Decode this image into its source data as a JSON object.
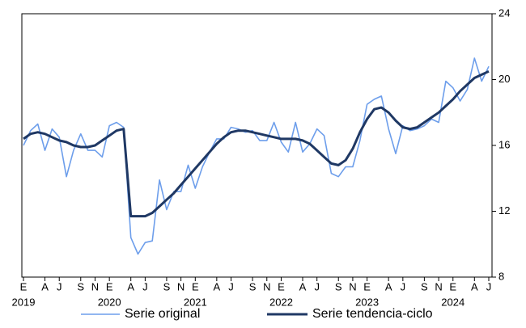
{
  "chart_data": {
    "type": "line",
    "categories": [
      "E",
      null,
      null,
      "A",
      null,
      "J",
      null,
      null,
      "S",
      null,
      "N",
      null,
      "E",
      null,
      null,
      "A",
      null,
      "J",
      null,
      null,
      "S",
      null,
      "N",
      null,
      "E",
      null,
      null,
      "A",
      null,
      "J",
      null,
      null,
      "S",
      null,
      "N",
      null,
      "E",
      null,
      null,
      "A",
      null,
      "J",
      null,
      null,
      "S",
      null,
      "N",
      null,
      "E",
      null,
      null,
      "A",
      null,
      "J",
      null,
      null,
      "S",
      null,
      "N",
      null,
      "E",
      null,
      null,
      "A",
      null,
      "J"
    ],
    "year_labels": [
      "2019",
      null,
      null,
      null,
      null,
      null,
      null,
      null,
      null,
      null,
      null,
      null,
      "2020",
      null,
      null,
      null,
      null,
      null,
      null,
      null,
      null,
      null,
      null,
      null,
      "2021",
      null,
      null,
      null,
      null,
      null,
      null,
      null,
      null,
      null,
      null,
      null,
      "2022",
      null,
      null,
      null,
      null,
      null,
      null,
      null,
      null,
      null,
      null,
      null,
      "2023",
      null,
      null,
      null,
      null,
      null,
      null,
      null,
      null,
      null,
      null,
      null,
      "2024",
      null,
      null,
      null,
      null,
      null
    ],
    "series": [
      {
        "name": "Serie original",
        "color": "#6d9eeb",
        "values": [
          16.0,
          16.9,
          17.3,
          15.7,
          17.0,
          16.5,
          14.1,
          15.7,
          16.7,
          15.7,
          15.7,
          15.3,
          17.2,
          17.4,
          17.1,
          10.4,
          9.4,
          10.1,
          10.2,
          13.9,
          12.1,
          13.2,
          13.2,
          14.8,
          13.4,
          14.7,
          15.6,
          16.4,
          16.4,
          17.1,
          17.0,
          16.8,
          16.9,
          16.3,
          16.3,
          17.4,
          16.2,
          15.6,
          17.4,
          15.6,
          16.1,
          17.0,
          16.6,
          14.3,
          14.1,
          14.7,
          14.7,
          16.3,
          18.5,
          18.8,
          19.0,
          17.0,
          15.5,
          17.2,
          16.9,
          17.0,
          17.2,
          17.6,
          17.4,
          19.9,
          19.5,
          18.7,
          19.4,
          21.3,
          19.9,
          20.8
        ]
      },
      {
        "name": "Serie tendencia-ciclo",
        "color": "#1f3864",
        "values": [
          16.4,
          16.7,
          16.8,
          16.7,
          16.5,
          16.3,
          16.2,
          16.0,
          15.9,
          15.9,
          16.0,
          16.3,
          16.6,
          16.9,
          17.0,
          11.7,
          11.7,
          11.7,
          11.9,
          12.3,
          12.7,
          13.1,
          13.6,
          14.1,
          14.6,
          15.1,
          15.6,
          16.1,
          16.5,
          16.8,
          16.9,
          16.9,
          16.8,
          16.7,
          16.6,
          16.5,
          16.4,
          16.4,
          16.4,
          16.3,
          16.1,
          15.7,
          15.3,
          14.9,
          14.8,
          15.1,
          15.8,
          16.8,
          17.6,
          18.2,
          18.3,
          18.0,
          17.5,
          17.1,
          17.0,
          17.1,
          17.4,
          17.7,
          18.0,
          18.4,
          18.8,
          19.3,
          19.7,
          20.1,
          20.3,
          20.5
        ]
      }
    ],
    "ylim": [
      8,
      24
    ],
    "yticks": [
      8,
      12,
      16,
      20,
      24
    ],
    "y_axis_side": "right"
  }
}
